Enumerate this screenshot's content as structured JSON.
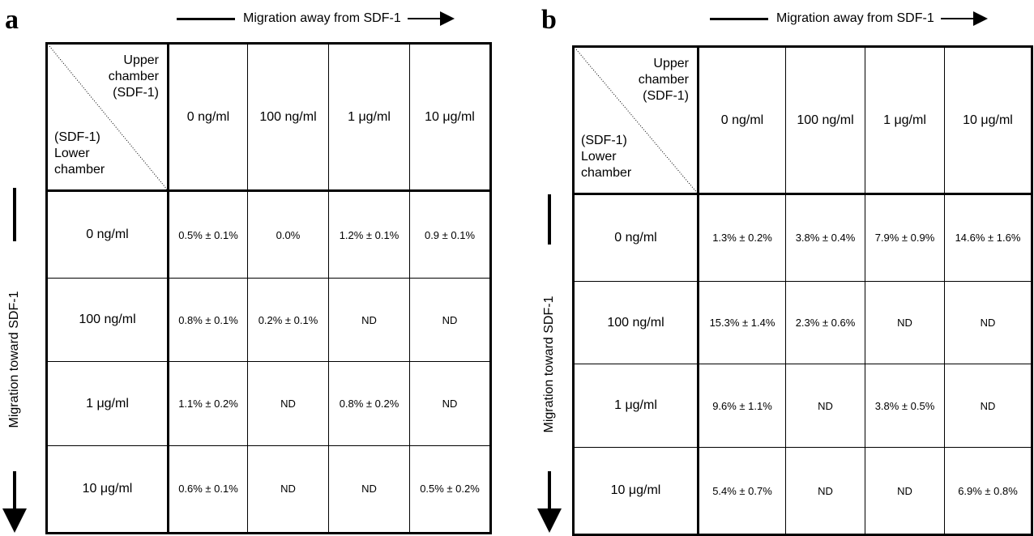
{
  "panels": [
    {
      "letter": "a",
      "top_arrow_label": "Migration away from SDF-1",
      "side_arrow_label": "Migration toward SDF-1",
      "corner_upper": "Upper\nchamber\n(SDF-1)",
      "corner_lower": "(SDF-1)\nLower\nchamber",
      "col_headers": [
        "0 ng/ml",
        "100 ng/ml",
        "1 μg/ml",
        "10 μg/ml"
      ],
      "rows": [
        {
          "label": "0 ng/ml",
          "cells": [
            "0.5% ± 0.1%",
            "0.0%",
            "1.2% ± 0.1%",
            "0.9 ± 0.1%"
          ]
        },
        {
          "label": "100 ng/ml",
          "cells": [
            "0.8% ± 0.1%",
            "0.2% ± 0.1%",
            "ND",
            "ND"
          ]
        },
        {
          "label": "1 μg/ml",
          "cells": [
            "1.1% ± 0.2%",
            "ND",
            "0.8% ± 0.2%",
            "ND"
          ]
        },
        {
          "label": "10 μg/ml",
          "cells": [
            "0.6% ± 0.1%",
            "ND",
            "ND",
            "0.5% ± 0.2%"
          ]
        }
      ]
    },
    {
      "letter": "b",
      "top_arrow_label": "Migration away from SDF-1",
      "side_arrow_label": "Migration toward SDF-1",
      "corner_upper": "Upper\nchamber\n(SDF-1)",
      "corner_lower": "(SDF-1)\nLower\nchamber",
      "col_headers": [
        "0 ng/ml",
        "100 ng/ml",
        "1 μg/ml",
        "10 μg/ml"
      ],
      "rows": [
        {
          "label": "0 ng/ml",
          "cells": [
            "1.3% ± 0.2%",
            "3.8% ± 0.4%",
            "7.9% ± 0.9%",
            "14.6% ± 1.6%"
          ]
        },
        {
          "label": "100 ng/ml",
          "cells": [
            "15.3% ± 1.4%",
            "2.3% ± 0.6%",
            "ND",
            "ND"
          ]
        },
        {
          "label": "1 μg/ml",
          "cells": [
            "9.6% ± 1.1%",
            "ND",
            "3.8% ± 0.5%",
            "ND"
          ]
        },
        {
          "label": "10 μg/ml",
          "cells": [
            "5.4% ± 0.7%",
            "ND",
            "ND",
            "6.9% ± 0.8%"
          ]
        }
      ]
    }
  ]
}
